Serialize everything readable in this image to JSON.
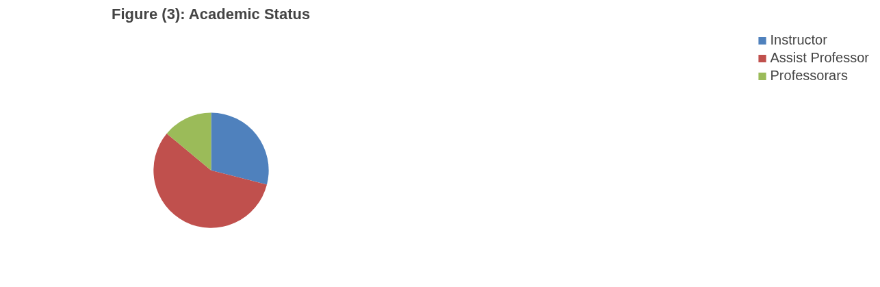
{
  "chart_data": {
    "type": "pie",
    "title": "Figure (3): Academic Status",
    "categories": [
      "Instructor",
      "Assist Professor",
      "Professorars"
    ],
    "values": [
      29,
      57,
      14
    ],
    "colors": [
      "#4f81bd",
      "#c0504d",
      "#9bbb59"
    ],
    "legend": "right"
  }
}
